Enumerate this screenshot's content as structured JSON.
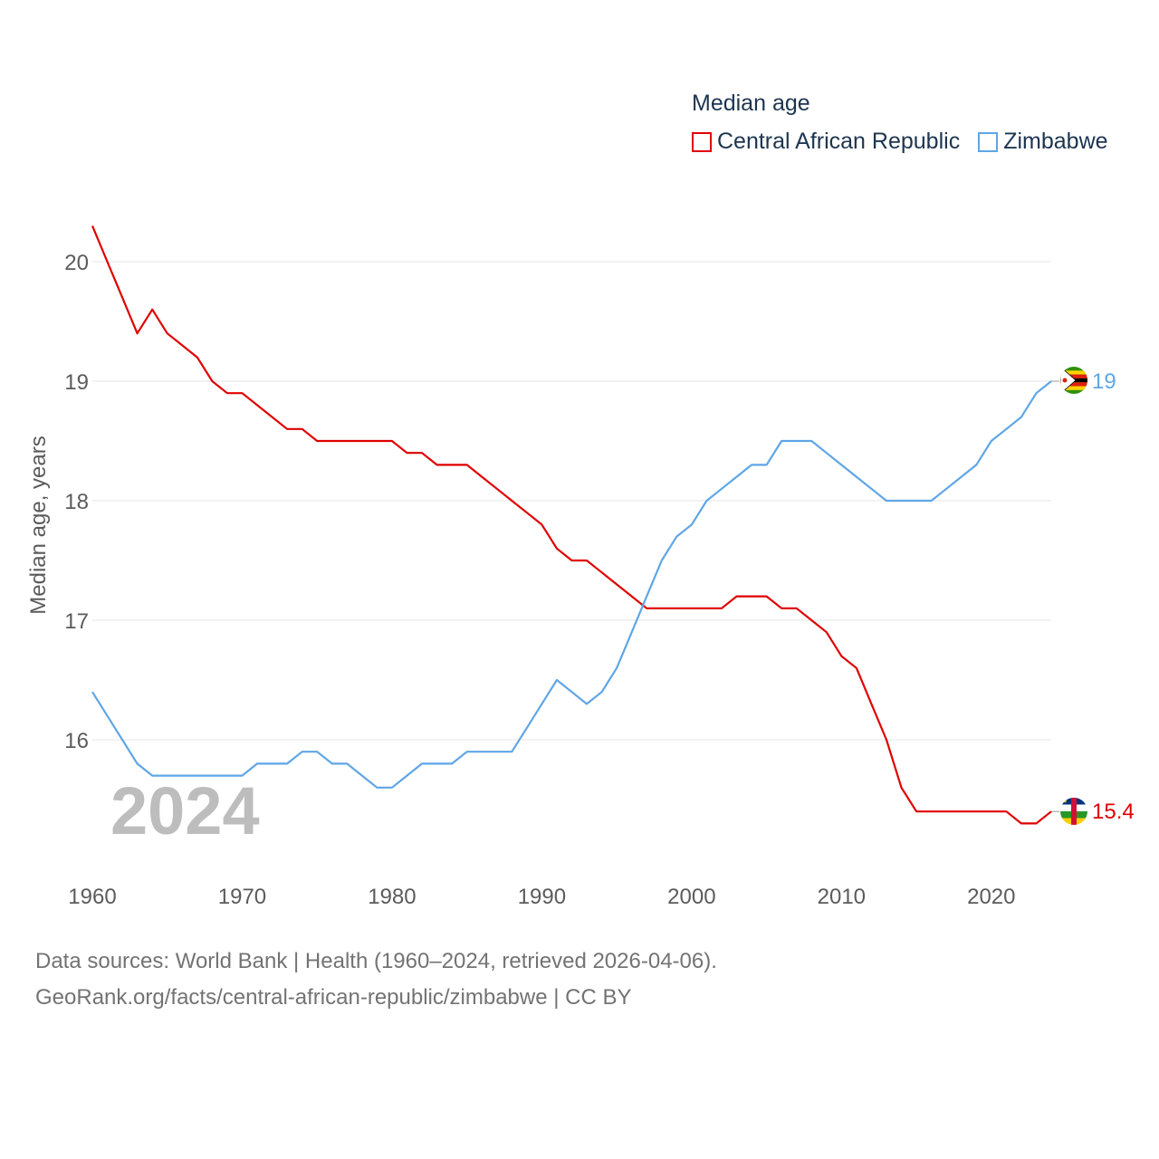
{
  "legend": {
    "title": "Median age",
    "items": [
      {
        "name": "Central African Republic",
        "color": "#e00000"
      },
      {
        "name": "Zimbabwe",
        "color": "#5fa6e6"
      }
    ]
  },
  "chart_data": {
    "type": "line",
    "title": "Median age",
    "ylabel": "Median age, years",
    "xlabel": "",
    "xlim": [
      1960,
      2024
    ],
    "ylim": [
      15,
      20.5
    ],
    "x_ticks": [
      1960,
      1970,
      1980,
      1990,
      2000,
      2010,
      2020
    ],
    "y_ticks": [
      16,
      17,
      18,
      19,
      20
    ],
    "grid": true,
    "watermark_year": "2024",
    "x": [
      1960,
      1961,
      1962,
      1963,
      1964,
      1965,
      1966,
      1967,
      1968,
      1969,
      1970,
      1971,
      1972,
      1973,
      1974,
      1975,
      1976,
      1977,
      1978,
      1979,
      1980,
      1981,
      1982,
      1983,
      1984,
      1985,
      1986,
      1987,
      1988,
      1989,
      1990,
      1991,
      1992,
      1993,
      1994,
      1995,
      1996,
      1997,
      1998,
      1999,
      2000,
      2001,
      2002,
      2003,
      2004,
      2005,
      2006,
      2007,
      2008,
      2009,
      2010,
      2011,
      2012,
      2013,
      2014,
      2015,
      2016,
      2017,
      2018,
      2019,
      2020,
      2021,
      2022,
      2023,
      2024
    ],
    "series": [
      {
        "name": "Central African Republic",
        "color": "#e00000",
        "end_label": "15.4",
        "values": [
          20.3,
          20.0,
          19.7,
          19.4,
          19.6,
          19.4,
          19.3,
          19.2,
          19.0,
          18.9,
          18.9,
          18.8,
          18.7,
          18.6,
          18.6,
          18.5,
          18.5,
          18.5,
          18.5,
          18.5,
          18.5,
          18.4,
          18.4,
          18.3,
          18.3,
          18.3,
          18.2,
          18.1,
          18.0,
          17.9,
          17.8,
          17.6,
          17.5,
          17.5,
          17.4,
          17.3,
          17.2,
          17.1,
          17.1,
          17.1,
          17.1,
          17.1,
          17.1,
          17.2,
          17.2,
          17.2,
          17.1,
          17.1,
          17.0,
          16.9,
          16.7,
          16.6,
          16.3,
          16.0,
          15.6,
          15.4,
          15.4,
          15.4,
          15.4,
          15.4,
          15.4,
          15.4,
          15.3,
          15.3,
          15.4
        ]
      },
      {
        "name": "Zimbabwe",
        "color": "#5fa6e6",
        "end_label": "19",
        "values": [
          16.4,
          16.2,
          16.0,
          15.8,
          15.7,
          15.7,
          15.7,
          15.7,
          15.7,
          15.7,
          15.7,
          15.8,
          15.8,
          15.8,
          15.9,
          15.9,
          15.8,
          15.8,
          15.7,
          15.6,
          15.6,
          15.7,
          15.8,
          15.8,
          15.8,
          15.9,
          15.9,
          15.9,
          15.9,
          16.1,
          16.3,
          16.5,
          16.4,
          16.3,
          16.4,
          16.6,
          16.9,
          17.2,
          17.5,
          17.7,
          17.8,
          18.0,
          18.1,
          18.2,
          18.3,
          18.3,
          18.5,
          18.5,
          18.5,
          18.4,
          18.3,
          18.2,
          18.1,
          18.0,
          18.0,
          18.0,
          18.0,
          18.1,
          18.2,
          18.3,
          18.5,
          18.6,
          18.7,
          18.9,
          19.0
        ]
      }
    ]
  },
  "source": {
    "line1": "Data sources: World Bank | Health (1960–2024, retrieved 2026-04-06).",
    "line2": "GeoRank.org/facts/central-african-republic/zimbabwe | CC BY"
  }
}
